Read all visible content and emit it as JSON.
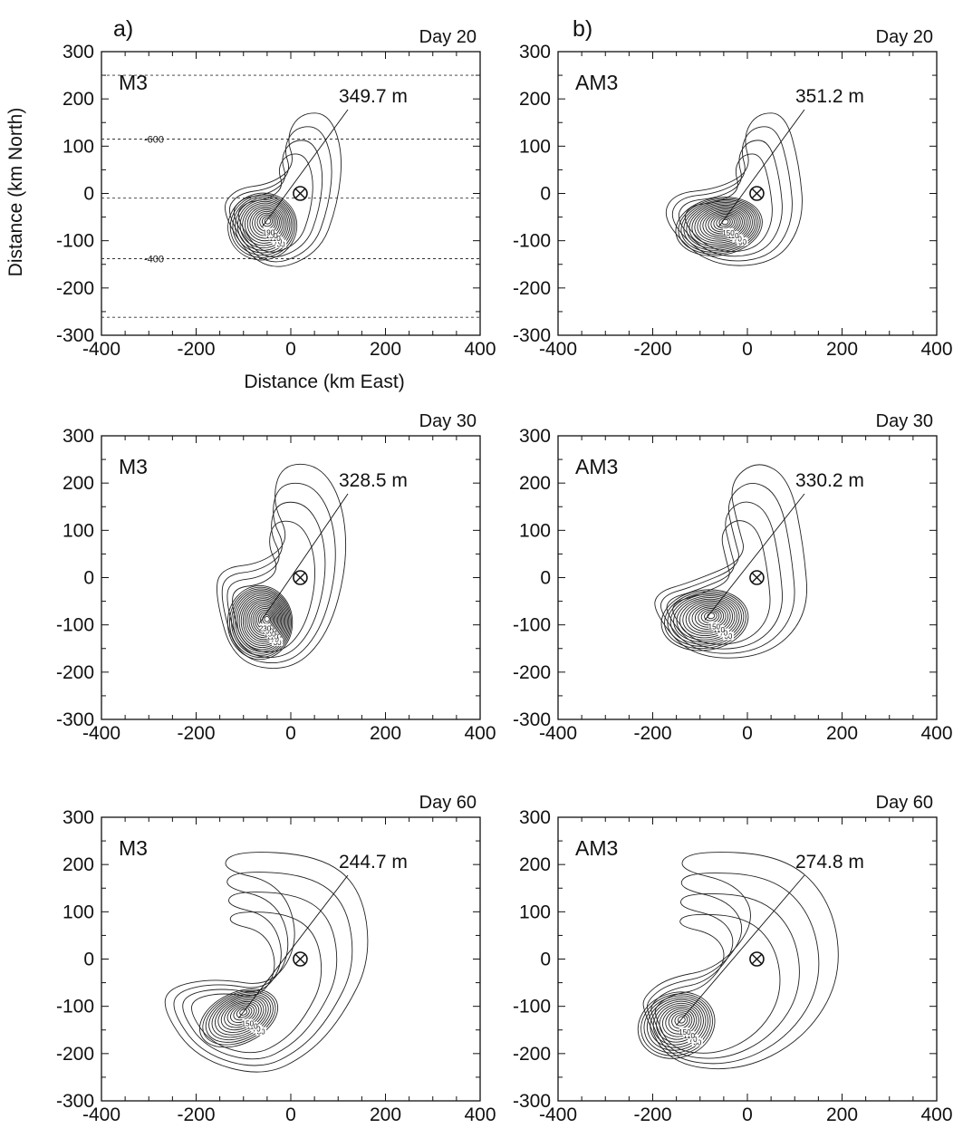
{
  "figure": {
    "panel_a_label": "a)",
    "panel_b_label": "b)",
    "x_axis_title": "Distance (km East)",
    "y_axis_title": "Distance (km North)"
  },
  "chart_data": [
    {
      "type": "contour",
      "panel": "M3",
      "day_label": "Day 20",
      "max_label": "349.7 m",
      "x_range": [
        -400,
        400
      ],
      "y_range": [
        -300,
        300
      ],
      "xticks": [
        "-400",
        "-200",
        "0",
        "200",
        "400"
      ],
      "yticks": [
        "300",
        "200",
        "100",
        "0",
        "-100",
        "-200",
        "-300"
      ],
      "eddy_center": [
        -60,
        -70
      ],
      "marker": [
        20,
        0
      ],
      "contour_labels": [
        "30",
        "70",
        "110",
        "150",
        "190"
      ],
      "reference_lines": [
        {
          "y": 250,
          "label": ""
        },
        {
          "y": 115,
          "label": "-600"
        },
        {
          "y": -10,
          "label": ""
        },
        {
          "y": -138,
          "label": "-400"
        },
        {
          "y": -262,
          "label": ""
        }
      ],
      "show_x_axis_title": true,
      "show_y_axis_title": true,
      "show_panel_letter": "a"
    },
    {
      "type": "contour",
      "panel": "AM3",
      "day_label": "Day 20",
      "max_label": "351.2 m",
      "x_range": [
        -400,
        400
      ],
      "y_range": [
        -300,
        300
      ],
      "xticks": [
        "-400",
        "-200",
        "0",
        "200",
        "400"
      ],
      "yticks": [
        "300",
        "200",
        "100",
        "0",
        "-100",
        "-200",
        "-300"
      ],
      "eddy_center": [
        -60,
        -70
      ],
      "marker": [
        20,
        0
      ],
      "contour_labels": [
        "30",
        "70",
        "110",
        "150"
      ],
      "show_panel_letter": "b"
    },
    {
      "type": "contour",
      "panel": "M3",
      "day_label": "Day 30",
      "max_label": "328.5 m",
      "x_range": [
        -400,
        400
      ],
      "y_range": [
        -300,
        300
      ],
      "xticks": [
        "-400",
        "-200",
        "0",
        "200",
        "400"
      ],
      "yticks": [
        "300",
        "200",
        "100",
        "0",
        "-100",
        "-200",
        "-300"
      ],
      "eddy_center": [
        -65,
        -95
      ],
      "marker": [
        20,
        0
      ],
      "contour_labels": [
        "30",
        "70",
        "110",
        "150",
        "190",
        "230"
      ]
    },
    {
      "type": "contour",
      "panel": "AM3",
      "day_label": "Day 30",
      "max_label": "330.2 m",
      "x_range": [
        -400,
        400
      ],
      "y_range": [
        -300,
        300
      ],
      "xticks": [
        "-400",
        "-200",
        "0",
        "200",
        "400"
      ],
      "yticks": [
        "300",
        "200",
        "100",
        "0",
        "-100",
        "-200",
        "-300"
      ],
      "eddy_center": [
        -90,
        -90
      ],
      "marker": [
        20,
        0
      ],
      "contour_labels": [
        "30",
        "70",
        "110",
        "150"
      ]
    },
    {
      "type": "contour",
      "panel": "M3",
      "day_label": "Day 60",
      "max_label": "244.7 m",
      "x_range": [
        -400,
        400
      ],
      "y_range": [
        -300,
        300
      ],
      "xticks": [
        "-400",
        "-200",
        "0",
        "200",
        "400"
      ],
      "yticks": [
        "300",
        "200",
        "100",
        "0",
        "-100",
        "-200",
        "-300"
      ],
      "eddy_center": [
        -110,
        -125
      ],
      "marker": [
        20,
        0
      ],
      "contour_labels": [
        "30",
        "70",
        "110",
        "150"
      ]
    },
    {
      "type": "contour",
      "panel": "AM3",
      "day_label": "Day 60",
      "max_label": "274.8 m",
      "x_range": [
        -400,
        400
      ],
      "y_range": [
        -300,
        300
      ],
      "xticks": [
        "-400",
        "-200",
        "0",
        "200",
        "400"
      ],
      "yticks": [
        "300",
        "200",
        "100",
        "0",
        "-100",
        "-200",
        "-300"
      ],
      "eddy_center": [
        -150,
        -140
      ],
      "marker": [
        20,
        0
      ],
      "contour_labels": [
        "30",
        "70",
        "110",
        "150"
      ]
    }
  ]
}
